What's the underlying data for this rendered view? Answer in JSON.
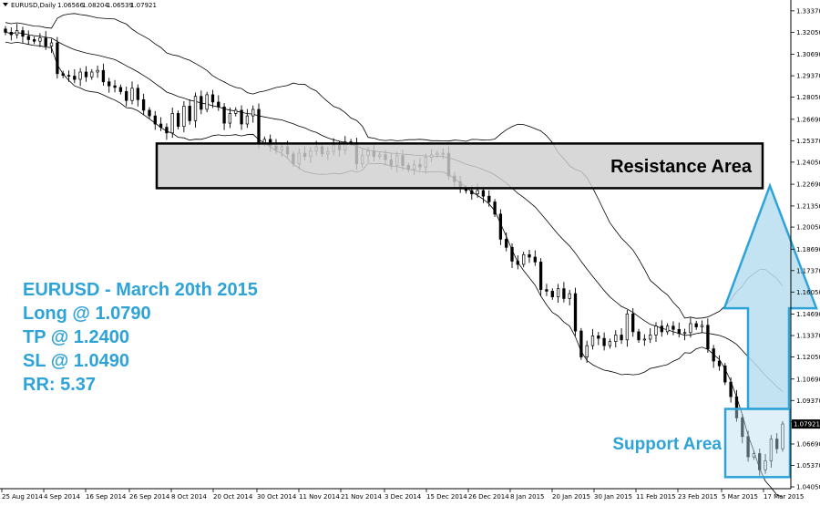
{
  "chart_data": {
    "type": "candlestick",
    "header": {
      "symbol": "EURUSD,Daily",
      "ohlc": [
        "1.06566",
        "1.08204",
        "1.06539",
        "1.07921"
      ]
    },
    "ylim": [
      1.0405,
      1.337
    ],
    "price_ticks": [
      "1.33370",
      "1.32050",
      "1.30690",
      "1.29370",
      "1.28050",
      "1.26690",
      "1.25370",
      "1.24050",
      "1.22690",
      "1.21350",
      "1.20050",
      "1.18690",
      "1.17370",
      "1.16050",
      "1.14690",
      "1.13370",
      "1.12050",
      "1.10690",
      "1.09370",
      "1.08050",
      "1.06690",
      "1.05370",
      "1.04050"
    ],
    "price_tick_values": [
      1.3337,
      1.3205,
      1.3069,
      1.2937,
      1.2805,
      1.2669,
      1.2537,
      1.2405,
      1.2269,
      1.2135,
      1.2005,
      1.1869,
      1.1737,
      1.1605,
      1.1469,
      1.1337,
      1.1205,
      1.1069,
      1.0937,
      1.0805,
      1.0669,
      1.0537,
      1.0405
    ],
    "current_price": "1.07921",
    "date_ticks": [
      "25 Aug 2014",
      "4 Sep 2014",
      "16 Sep 2014",
      "26 Sep 2014",
      "8 Oct 2014",
      "20 Oct 2014",
      "30 Oct 2014",
      "11 Nov 2014",
      "21 Nov 2014",
      "3 Dec 2014",
      "15 Dec 2014",
      "26 Dec 2014",
      "8 Jan 2015",
      "20 Jan 2015",
      "30 Jan 2015",
      "11 Feb 2015",
      "23 Feb 2015",
      "5 Mar 2015",
      "17 Mar 2015"
    ],
    "close": [
      1.3205,
      1.319,
      1.3215,
      1.318,
      1.316,
      1.315,
      1.317,
      1.312,
      1.314,
      1.295,
      1.294,
      1.2935,
      1.2915,
      1.296,
      1.293,
      1.296,
      1.297,
      1.29,
      1.2875,
      1.2865,
      1.284,
      1.2785,
      1.286,
      1.279,
      1.2725,
      1.269,
      1.264,
      1.262,
      1.2585,
      1.2705,
      1.2625,
      1.275,
      1.266,
      1.281,
      1.273,
      1.282,
      1.2775,
      1.2745,
      1.2645,
      1.2705,
      1.2725,
      1.264,
      1.269,
      1.273,
      1.252,
      1.2545,
      1.2505,
      1.248,
      1.25,
      1.2455,
      1.2395,
      1.246,
      1.244,
      1.2475,
      1.25,
      1.2455,
      1.247,
      1.251,
      1.248,
      1.253,
      1.2525,
      1.2395,
      1.2445,
      1.2475,
      1.244,
      1.245,
      1.242,
      1.2385,
      1.2445,
      1.2385,
      1.236,
      1.239,
      1.2375,
      1.2435,
      1.245,
      1.246,
      1.246,
      1.232,
      1.2285,
      1.2245,
      1.223,
      1.221,
      1.223,
      1.2195,
      1.216,
      1.2085,
      1.193,
      1.188,
      1.1795,
      1.1775,
      1.1835,
      1.182,
      1.179,
      1.162,
      1.161,
      1.1575,
      1.1625,
      1.1565,
      1.1595,
      1.1365,
      1.1205,
      1.1275,
      1.1335,
      1.132,
      1.1275,
      1.13,
      1.134,
      1.131,
      1.147,
      1.136,
      1.131,
      1.1315,
      1.134,
      1.1395,
      1.136,
      1.1395,
      1.1375,
      1.135,
      1.1355,
      1.141,
      1.139,
      1.14,
      1.1255,
      1.118,
      1.115,
      1.105,
      1.096,
      1.083,
      1.0715,
      1.059,
      1.061,
      1.051,
      1.0565,
      1.07,
      1.064,
      1.0792
    ]
  },
  "annotations": {
    "trade_lines": [
      "EURUSD - March 20th 2015",
      "Long @ 1.0790",
      "TP @ 1.2400",
      "SL @ 1.0490",
      "RR: 5.37"
    ],
    "resistance_label": "Resistance Area",
    "resistance_zone": [
      1.2245,
      1.252
    ],
    "support_label": "Support Area",
    "support_zone": [
      1.0465,
      1.0885
    ],
    "colors": {
      "annotation_blue": "#2ea3d8",
      "arrow_fill": "#b8def0",
      "arrow_stroke": "#2ea3d8",
      "resistance_fill": "#d0d0d0",
      "bands": "#000000"
    }
  }
}
